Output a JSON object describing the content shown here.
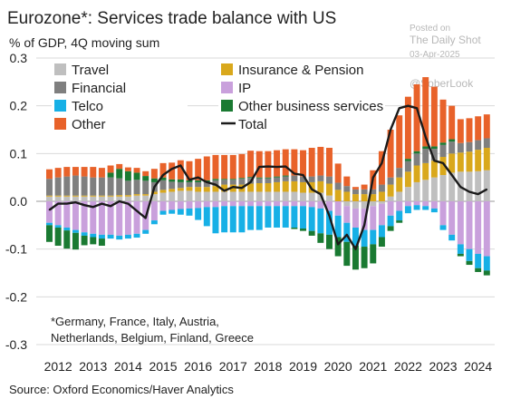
{
  "watermark": {
    "line1": "Posted on",
    "line2": "The Daily Shot",
    "line3": "03-Apr-2025",
    "handle": "@SoberLook"
  },
  "colors": {
    "travel": "#bfbfbf",
    "insurance": "#d9a81c",
    "financial": "#7f7f7f",
    "ip": "#c9a0dc",
    "telco": "#17b0e6",
    "other_business": "#1a7a32",
    "other": "#e8622a",
    "total": "#1a1a1a",
    "grid": "#d9d9d9",
    "axis_text": "#222222"
  },
  "chart_data": {
    "type": "bar",
    "stacked": true,
    "title": "Eurozone*: Services trade balance with US",
    "subtitle": "% of GDP, 4Q moving sum",
    "footnote_lines": [
      "*Germany, France, Italy, Austria,",
      "Netherlands, Belgium, Finland, Greece"
    ],
    "source": "Source: Oxford Economics/Haver Analytics",
    "ylim": [
      -0.3,
      0.3
    ],
    "yticks": [
      0.3,
      0.2,
      0.1,
      0.0,
      -0.1,
      -0.2,
      -0.3
    ],
    "ytick_labels": [
      "0.3",
      "0.2",
      "0.1",
      "0.0",
      "-0.1",
      "-0.2",
      "-0.3"
    ],
    "xlim": [
      2011.75,
      2024.85
    ],
    "xticks": [
      2012,
      2013,
      2014,
      2015,
      2016,
      2017,
      2018,
      2019,
      2020,
      2021,
      2022,
      2023,
      2024
    ],
    "grid": true,
    "legend_placement": "top",
    "x": [
      2012.0,
      2012.25,
      2012.5,
      2012.75,
      2013.0,
      2013.25,
      2013.5,
      2013.75,
      2014.0,
      2014.25,
      2014.5,
      2014.75,
      2015.0,
      2015.25,
      2015.5,
      2015.75,
      2016.0,
      2016.25,
      2016.5,
      2016.75,
      2017.0,
      2017.25,
      2017.5,
      2017.75,
      2018.0,
      2018.25,
      2018.5,
      2018.75,
      2019.0,
      2019.25,
      2019.5,
      2019.75,
      2020.0,
      2020.25,
      2020.5,
      2020.75,
      2021.0,
      2021.25,
      2021.5,
      2021.75,
      2022.0,
      2022.25,
      2022.5,
      2022.75,
      2023.0,
      2023.25,
      2023.5,
      2023.75,
      2024.0,
      2024.25,
      2024.5
    ],
    "series": [
      {
        "name": "Travel",
        "key": "travel",
        "values": [
          0.01,
          0.01,
          0.01,
          0.01,
          0.01,
          0.01,
          0.01,
          0.01,
          0.01,
          0.01,
          0.012,
          0.012,
          0.015,
          0.018,
          0.02,
          0.022,
          0.022,
          0.02,
          0.02,
          0.02,
          0.02,
          0.02,
          0.02,
          0.02,
          0.02,
          0.02,
          0.02,
          0.02,
          0.02,
          0.018,
          0.018,
          0.018,
          0.012,
          0.0,
          -0.01,
          -0.015,
          -0.015,
          -0.01,
          -0.005,
          0.01,
          0.02,
          0.03,
          0.04,
          0.045,
          0.05,
          0.055,
          0.06,
          0.062,
          0.062,
          0.063,
          0.065
        ]
      },
      {
        "name": "Insurance & Pension",
        "key": "insurance",
        "values": [
          0.002,
          0.002,
          0.002,
          0.002,
          0.002,
          0.002,
          0.002,
          0.002,
          0.003,
          0.003,
          0.003,
          0.003,
          0.005,
          0.006,
          0.006,
          0.006,
          0.008,
          0.01,
          0.01,
          0.012,
          0.015,
          0.015,
          0.015,
          0.017,
          0.018,
          0.018,
          0.02,
          0.022,
          0.022,
          0.022,
          0.022,
          0.024,
          0.025,
          0.024,
          0.02,
          0.015,
          0.015,
          0.015,
          0.02,
          0.025,
          0.03,
          0.032,
          0.035,
          0.035,
          0.035,
          0.038,
          0.04,
          0.04,
          0.042,
          0.045,
          0.047
        ]
      },
      {
        "name": "Financial",
        "key": "financial",
        "values": [
          0.035,
          0.038,
          0.04,
          0.042,
          0.04,
          0.038,
          0.038,
          0.038,
          0.035,
          0.03,
          0.03,
          0.028,
          0.02,
          0.02,
          0.015,
          0.012,
          0.01,
          0.01,
          0.01,
          0.012,
          0.01,
          0.01,
          0.012,
          0.012,
          0.01,
          0.01,
          0.01,
          0.01,
          0.012,
          0.012,
          0.012,
          0.012,
          0.015,
          0.015,
          0.012,
          0.01,
          0.01,
          0.01,
          0.015,
          0.015,
          0.02,
          0.022,
          0.025,
          0.03,
          0.025,
          0.025,
          0.025,
          0.02,
          0.02,
          0.02,
          0.02
        ]
      },
      {
        "name": "IP",
        "key": "ip",
        "values": [
          -0.045,
          -0.05,
          -0.055,
          -0.06,
          -0.065,
          -0.068,
          -0.07,
          -0.07,
          -0.072,
          -0.07,
          -0.068,
          -0.06,
          -0.04,
          -0.02,
          -0.018,
          -0.016,
          -0.015,
          -0.014,
          -0.012,
          -0.012,
          -0.01,
          -0.01,
          -0.01,
          -0.01,
          -0.01,
          -0.01,
          -0.01,
          -0.01,
          -0.01,
          -0.01,
          -0.012,
          -0.015,
          -0.02,
          -0.03,
          -0.035,
          -0.04,
          -0.045,
          -0.05,
          -0.045,
          -0.03,
          -0.02,
          -0.01,
          -0.008,
          -0.01,
          -0.015,
          -0.05,
          -0.07,
          -0.09,
          -0.1,
          -0.11,
          -0.115
        ]
      },
      {
        "name": "Telco",
        "key": "telco",
        "values": [
          -0.005,
          -0.005,
          -0.006,
          -0.006,
          -0.007,
          -0.007,
          -0.008,
          -0.008,
          -0.008,
          -0.008,
          -0.008,
          -0.008,
          -0.008,
          -0.008,
          -0.008,
          -0.012,
          -0.015,
          -0.025,
          -0.04,
          -0.055,
          -0.055,
          -0.055,
          -0.055,
          -0.05,
          -0.05,
          -0.045,
          -0.045,
          -0.045,
          -0.045,
          -0.047,
          -0.05,
          -0.052,
          -0.05,
          -0.045,
          -0.04,
          -0.038,
          -0.035,
          -0.03,
          -0.025,
          -0.022,
          -0.02,
          -0.015,
          -0.01,
          -0.008,
          -0.008,
          -0.01,
          -0.012,
          -0.02,
          -0.025,
          -0.03,
          -0.03
        ]
      },
      {
        "name": "Other business services",
        "key": "other_business",
        "values": [
          -0.035,
          -0.038,
          -0.038,
          -0.035,
          -0.02,
          -0.015,
          -0.015,
          0.01,
          0.02,
          0.02,
          0.015,
          0.01,
          0.008,
          0.006,
          0.005,
          0.006,
          0.004,
          0.004,
          0.004,
          0.003,
          0.002,
          0.002,
          0.002,
          0.002,
          0.002,
          0.002,
          0.002,
          0.002,
          -0.003,
          -0.005,
          -0.01,
          -0.02,
          -0.03,
          -0.04,
          -0.05,
          -0.05,
          -0.045,
          -0.04,
          -0.02,
          -0.01,
          -0.005,
          0.005,
          0.005,
          0.005,
          0.005,
          0.005,
          0.005,
          -0.005,
          -0.008,
          -0.008,
          -0.01
        ]
      },
      {
        "name": "Other",
        "key": "other",
        "values": [
          0.02,
          0.02,
          0.02,
          0.018,
          0.02,
          0.022,
          0.02,
          0.015,
          0.01,
          0.008,
          0.01,
          0.01,
          0.02,
          0.03,
          0.035,
          0.04,
          0.04,
          0.045,
          0.05,
          0.05,
          0.05,
          0.05,
          0.05,
          0.055,
          0.055,
          0.055,
          0.055,
          0.055,
          0.055,
          0.055,
          0.06,
          0.06,
          0.06,
          0.04,
          0.02,
          0.005,
          0.01,
          0.04,
          0.07,
          0.1,
          0.11,
          0.13,
          0.14,
          0.145,
          0.125,
          0.09,
          0.07,
          0.05,
          0.05,
          0.05,
          0.05
        ]
      },
      {
        "name": "Total",
        "key": "total",
        "line": true,
        "values": [
          -0.018,
          -0.005,
          -0.005,
          -0.002,
          -0.008,
          -0.012,
          -0.005,
          -0.01,
          0.0,
          -0.005,
          -0.02,
          -0.035,
          0.03,
          0.055,
          0.068,
          0.075,
          0.045,
          0.05,
          0.04,
          0.035,
          0.022,
          0.03,
          0.028,
          0.04,
          0.072,
          0.073,
          0.072,
          0.073,
          0.058,
          0.055,
          0.025,
          0.015,
          -0.03,
          -0.09,
          -0.07,
          -0.1,
          -0.05,
          0.05,
          0.08,
          0.15,
          0.195,
          0.2,
          0.195,
          0.135,
          0.085,
          0.08,
          0.055,
          0.03,
          0.02,
          0.015,
          0.025
        ]
      }
    ],
    "legend": [
      {
        "name": "Travel",
        "key": "travel",
        "marker": "square"
      },
      {
        "name": "Insurance & Pension",
        "key": "insurance",
        "marker": "square"
      },
      {
        "name": "Financial",
        "key": "financial",
        "marker": "square"
      },
      {
        "name": "IP",
        "key": "ip",
        "marker": "square"
      },
      {
        "name": "Telco",
        "key": "telco",
        "marker": "square"
      },
      {
        "name": "Other business services",
        "key": "other_business",
        "marker": "square"
      },
      {
        "name": "Other",
        "key": "other",
        "marker": "square"
      },
      {
        "name": "Total",
        "key": "total",
        "marker": "line"
      }
    ]
  }
}
